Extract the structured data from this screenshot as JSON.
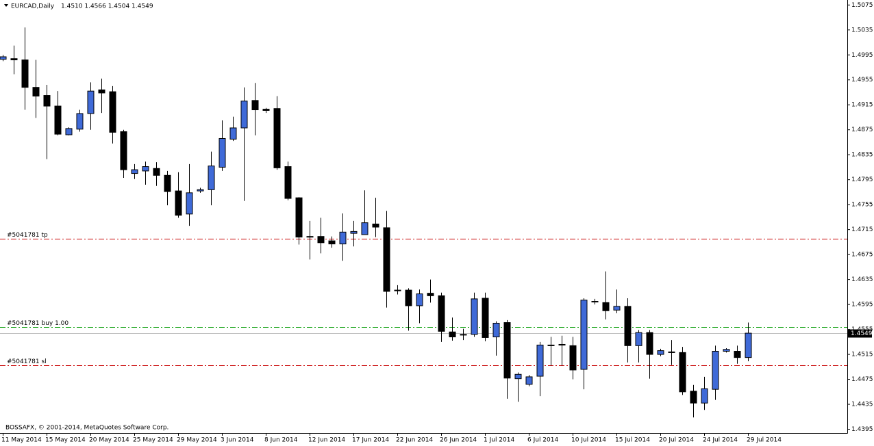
{
  "chart_data": {
    "type": "candlestick",
    "title": "EURCAD,Daily",
    "subtitle": "1.4510 1.4566 1.4504 1.4549",
    "footer": "BOSSAFX, © 2001-2014, MetaQuotes Software Corp.",
    "categories": [
      "11 May 2014",
      null,
      null,
      null,
      "15 May 2014",
      null,
      null,
      null,
      "20 May 2014",
      null,
      null,
      null,
      "25 May 2014",
      null,
      null,
      null,
      "29 May 2014",
      null,
      null,
      null,
      "3 Jun 2014",
      null,
      null,
      null,
      "8 Jun 2014",
      null,
      null,
      null,
      "12 Jun 2014",
      null,
      null,
      null,
      "17 Jun 2014",
      null,
      null,
      null,
      "22 Jun 2014",
      null,
      null,
      null,
      "26 Jun 2014",
      null,
      null,
      null,
      "1 Jul 2014",
      null,
      null,
      null,
      "6 Jul 2014",
      null,
      null,
      null,
      "10 Jul 2014",
      null,
      null,
      null,
      "15 Jul 2014",
      null,
      null,
      null,
      "20 Jul 2014",
      null,
      null,
      null,
      "24 Jul 2014",
      null,
      null,
      null,
      "29 Jul 2014"
    ],
    "open": [
      1.4988,
      1.4989,
      1.4987,
      1.4943,
      1.493,
      1.4913,
      1.4867,
      1.4876,
      1.4901,
      1.4939,
      1.4936,
      1.4872,
      1.4805,
      1.4809,
      1.4813,
      1.4802,
      1.4777,
      1.474,
      1.4777,
      1.4779,
      1.4815,
      1.486,
      1.4878,
      1.4922,
      1.4908,
      1.4909,
      1.4816,
      1.4766,
      1.4704,
      1.4704,
      1.4697,
      1.4692,
      1.4709,
      1.4707,
      1.4724,
      1.4718,
      1.4618,
      1.4618,
      1.4593,
      1.4613,
      1.4609,
      1.4551,
      1.4546,
      1.4547,
      1.4605,
      1.4543,
      1.4566,
      1.4476,
      1.4467,
      1.448,
      1.4529,
      1.4531,
      1.4529,
      1.4491,
      1.46,
      1.4598,
      1.4586,
      1.4592,
      1.4529,
      1.455,
      1.4515,
      1.4518,
      1.4518,
      1.4456,
      1.4437,
      1.4459,
      1.452,
      1.452,
      1.451
    ],
    "high": [
      1.4995,
      1.501,
      1.5039,
      1.4987,
      1.4947,
      1.4937,
      1.4879,
      1.4907,
      1.4951,
      1.4957,
      1.4945,
      1.4875,
      1.482,
      1.4824,
      1.4823,
      1.4809,
      1.4807,
      1.482,
      1.4782,
      1.484,
      1.489,
      1.4896,
      1.4943,
      1.495,
      1.491,
      1.4929,
      1.4824,
      1.4767,
      1.4729,
      1.4734,
      1.4704,
      1.4741,
      1.4729,
      1.4778,
      1.4766,
      1.4745,
      1.4626,
      1.4621,
      1.4619,
      1.4635,
      1.4614,
      1.4574,
      1.4556,
      1.4614,
      1.4614,
      1.4568,
      1.457,
      1.4486,
      1.4482,
      1.4535,
      1.4543,
      1.4545,
      1.4543,
      1.4605,
      1.4604,
      1.4648,
      1.4619,
      1.4605,
      1.4554,
      1.4554,
      1.4524,
      1.4538,
      1.4527,
      1.4466,
      1.4479,
      1.4529,
      1.4525,
      1.4529,
      1.4566
    ],
    "low": [
      1.4985,
      1.4964,
      1.4907,
      1.4894,
      1.4828,
      1.4866,
      1.4866,
      1.4872,
      1.4875,
      1.4902,
      1.4853,
      1.4798,
      1.4796,
      1.4787,
      1.4785,
      1.4754,
      1.4734,
      1.4721,
      1.4774,
      1.4754,
      1.4809,
      1.4857,
      1.4761,
      1.4866,
      1.4902,
      1.4811,
      1.4762,
      1.4691,
      1.4667,
      1.4677,
      1.4686,
      1.4665,
      1.4688,
      1.4707,
      1.4703,
      1.459,
      1.4611,
      1.4553,
      1.4565,
      1.4598,
      1.4535,
      1.4537,
      1.4538,
      1.4543,
      1.4536,
      1.4513,
      1.4444,
      1.4439,
      1.4464,
      1.4448,
      1.4497,
      1.4497,
      1.4475,
      1.4459,
      1.4595,
      1.4571,
      1.4581,
      1.4502,
      1.4502,
      1.4476,
      1.4512,
      1.4498,
      1.445,
      1.4414,
      1.4426,
      1.4442,
      1.4518,
      1.45,
      1.4504
    ],
    "close": [
      1.4992,
      1.4987,
      1.4943,
      1.4929,
      1.4913,
      1.4868,
      1.4877,
      1.4901,
      1.4937,
      1.4934,
      1.4871,
      1.4811,
      1.4811,
      1.4816,
      1.4802,
      1.4776,
      1.4738,
      1.4774,
      1.4779,
      1.4817,
      1.4861,
      1.4878,
      1.4921,
      1.4907,
      1.4906,
      1.4814,
      1.4765,
      1.4703,
      1.4703,
      1.4694,
      1.4692,
      1.4711,
      1.4712,
      1.4726,
      1.4719,
      1.4616,
      1.4617,
      1.4593,
      1.4612,
      1.4609,
      1.4552,
      1.4543,
      1.4547,
      1.4604,
      1.4542,
      1.4565,
      1.4477,
      1.4483,
      1.4479,
      1.453,
      1.453,
      1.453,
      1.449,
      1.4602,
      1.4599,
      1.4585,
      1.4592,
      1.4529,
      1.455,
      1.4515,
      1.4521,
      1.4519,
      1.4455,
      1.4437,
      1.446,
      1.452,
      1.4523,
      1.451,
      1.4549
    ],
    "up_color": "#3f6ad8",
    "down_color": "#000000",
    "ylim": [
      1.4389,
      1.5083
    ],
    "yticks": [
      1.5075,
      1.5035,
      1.4995,
      1.4955,
      1.4915,
      1.4875,
      1.4835,
      1.4795,
      1.4755,
      1.4715,
      1.4675,
      1.4635,
      1.4595,
      1.4555,
      1.4515,
      1.4475,
      1.4435,
      1.4395
    ],
    "levels": [
      {
        "label": "#5041781 tp",
        "value": 1.47,
        "color": "#c80000"
      },
      {
        "label": "#5041781 buy 1.00",
        "value": 1.4559,
        "color": "#009a00"
      },
      {
        "label": "#5041781 sl",
        "value": 1.4497,
        "color": "#c80000"
      }
    ],
    "current_price": {
      "value": 1.4549,
      "label": "1.4549"
    }
  }
}
